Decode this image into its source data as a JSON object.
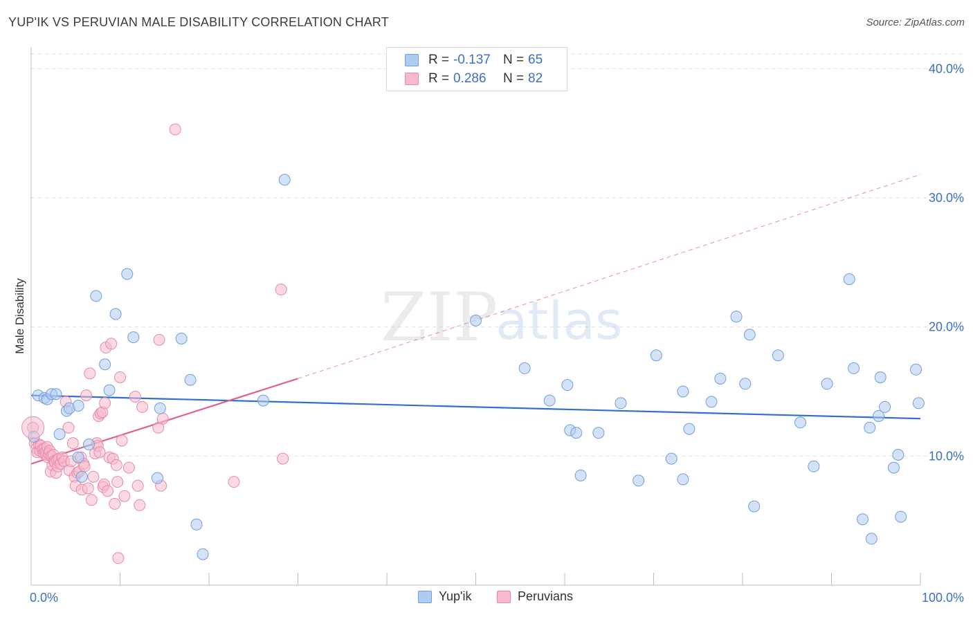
{
  "header": {
    "title": "YUP'IK VS PERUVIAN MALE DISABILITY CORRELATION CHART",
    "source": "Source: ZipAtlas.com"
  },
  "watermark": {
    "zip": "ZIP",
    "atlas": "atlas"
  },
  "legend": {
    "rows": [
      {
        "r_label": "R =",
        "r_value": "-0.137",
        "n_label": "N =",
        "n_value": "65"
      },
      {
        "r_label": "R =",
        "r_value": "0.286",
        "n_label": "N =",
        "n_value": "82"
      }
    ]
  },
  "bottom_legend": {
    "series1": "Yup'ik",
    "series2": "Peruvians"
  },
  "colors": {
    "blue_fill": "#aecbf0",
    "blue_stroke": "#6f9fdc",
    "blue_line": "#2f6fd0",
    "pink_fill": "#f7b9cc",
    "pink_stroke": "#e889a8",
    "pink_line": "#e0608a",
    "accent_text": "#3a6fc8",
    "grid": "#dedede"
  },
  "chart_data": {
    "type": "scatter",
    "title": "YUP'IK VS PERUVIAN MALE DISABILITY CORRELATION CHART",
    "xlabel": "",
    "ylabel": "Male Disability",
    "xlim": [
      0,
      100
    ],
    "ylim": [
      0,
      42
    ],
    "x_tick_labels": [
      "0.0%",
      "100.0%"
    ],
    "y_ticks": [
      10,
      20,
      30,
      40
    ],
    "y_tick_labels": [
      "10.0%",
      "20.0%",
      "30.0%",
      "40.0%"
    ],
    "series": [
      {
        "name": "Yup'ik",
        "r": -0.137,
        "n": 65,
        "trend": {
          "x0": 0,
          "y0": 14.7,
          "x1": 100,
          "y1": 12.9
        },
        "points": [
          [
            0.3,
            11.5
          ],
          [
            0.8,
            14.7
          ],
          [
            1.5,
            14.5
          ],
          [
            1.8,
            14.4
          ],
          [
            2.3,
            14.8
          ],
          [
            2.8,
            14.8
          ],
          [
            3.2,
            11.7
          ],
          [
            4.0,
            13.5
          ],
          [
            4.3,
            13.7
          ],
          [
            5.3,
            13.9
          ],
          [
            5.3,
            9.9
          ],
          [
            5.7,
            8.4
          ],
          [
            6.5,
            10.9
          ],
          [
            7.3,
            22.4
          ],
          [
            8.3,
            17.1
          ],
          [
            8.8,
            15.1
          ],
          [
            9.5,
            21.0
          ],
          [
            10.8,
            24.1
          ],
          [
            11.5,
            19.2
          ],
          [
            14.5,
            13.7
          ],
          [
            14.2,
            8.3
          ],
          [
            16.9,
            19.1
          ],
          [
            17.9,
            15.9
          ],
          [
            18.6,
            4.7
          ],
          [
            19.3,
            2.4
          ],
          [
            26.1,
            14.3
          ],
          [
            28.5,
            31.4
          ],
          [
            50.0,
            20.5
          ],
          [
            55.5,
            16.8
          ],
          [
            58.3,
            14.3
          ],
          [
            60.3,
            15.5
          ],
          [
            60.6,
            12.0
          ],
          [
            61.3,
            11.8
          ],
          [
            61.8,
            8.5
          ],
          [
            63.8,
            11.8
          ],
          [
            66.3,
            14.1
          ],
          [
            68.3,
            8.1
          ],
          [
            70.3,
            17.8
          ],
          [
            72.0,
            9.8
          ],
          [
            73.3,
            8.2
          ],
          [
            73.3,
            15.0
          ],
          [
            74.0,
            12.1
          ],
          [
            76.5,
            14.2
          ],
          [
            77.5,
            16.0
          ],
          [
            79.3,
            20.8
          ],
          [
            80.3,
            15.6
          ],
          [
            81.3,
            6.1
          ],
          [
            80.8,
            19.4
          ],
          [
            84.0,
            17.8
          ],
          [
            86.5,
            12.6
          ],
          [
            88.0,
            9.2
          ],
          [
            89.5,
            15.6
          ],
          [
            92.0,
            23.7
          ],
          [
            92.5,
            16.8
          ],
          [
            93.5,
            5.1
          ],
          [
            94.3,
            12.2
          ],
          [
            94.5,
            3.6
          ],
          [
            95.3,
            13.1
          ],
          [
            95.5,
            16.1
          ],
          [
            96.0,
            13.8
          ],
          [
            97.0,
            9.1
          ],
          [
            97.5,
            10.1
          ],
          [
            97.8,
            5.3
          ],
          [
            99.5,
            16.7
          ],
          [
            99.8,
            14.1
          ]
        ]
      },
      {
        "name": "Peruvians",
        "r": 0.286,
        "n": 82,
        "trend": {
          "x0": 0,
          "y0": 9.4,
          "x1": 30,
          "y1": 16.0
        },
        "trend_ext": {
          "x0": 30,
          "y0": 16.0,
          "x1": 100,
          "y1": 31.8
        },
        "points": [
          [
            0.2,
            12.2
          ],
          [
            0.4,
            11.0
          ],
          [
            0.6,
            10.6
          ],
          [
            0.7,
            10.3
          ],
          [
            0.9,
            10.9
          ],
          [
            1.0,
            10.4
          ],
          [
            1.1,
            10.8
          ],
          [
            1.3,
            10.5
          ],
          [
            1.4,
            10.2
          ],
          [
            1.5,
            10.6
          ],
          [
            1.6,
            10.3
          ],
          [
            1.7,
            10.1
          ],
          [
            1.8,
            10.7
          ],
          [
            1.9,
            9.9
          ],
          [
            2.0,
            10.2
          ],
          [
            2.1,
            10.4
          ],
          [
            2.2,
            8.8
          ],
          [
            2.3,
            10.0
          ],
          [
            2.4,
            9.3
          ],
          [
            2.5,
            10.1
          ],
          [
            2.6,
            9.6
          ],
          [
            2.7,
            9.5
          ],
          [
            2.8,
            8.7
          ],
          [
            2.9,
            9.7
          ],
          [
            3.0,
            9.2
          ],
          [
            3.1,
            9.8
          ],
          [
            3.3,
            9.4
          ],
          [
            3.5,
            9.9
          ],
          [
            3.7,
            9.6
          ],
          [
            3.9,
            14.2
          ],
          [
            4.2,
            12.2
          ],
          [
            4.3,
            8.9
          ],
          [
            4.5,
            9.6
          ],
          [
            4.7,
            11.0
          ],
          [
            4.9,
            8.4
          ],
          [
            5.0,
            7.7
          ],
          [
            5.2,
            8.7
          ],
          [
            5.4,
            8.8
          ],
          [
            5.6,
            9.9
          ],
          [
            5.7,
            7.4
          ],
          [
            5.9,
            9.4
          ],
          [
            6.0,
            9.2
          ],
          [
            6.2,
            14.7
          ],
          [
            6.4,
            7.5
          ],
          [
            6.6,
            16.4
          ],
          [
            6.8,
            6.6
          ],
          [
            7.0,
            8.4
          ],
          [
            7.2,
            10.2
          ],
          [
            7.4,
            11.0
          ],
          [
            7.5,
            10.8
          ],
          [
            7.6,
            13.1
          ],
          [
            7.7,
            10.3
          ],
          [
            7.8,
            13.3
          ],
          [
            8.0,
            13.4
          ],
          [
            8.1,
            7.6
          ],
          [
            8.2,
            7.8
          ],
          [
            8.3,
            14.1
          ],
          [
            8.4,
            18.4
          ],
          [
            8.6,
            7.3
          ],
          [
            8.8,
            9.9
          ],
          [
            9.0,
            18.7
          ],
          [
            9.2,
            9.8
          ],
          [
            9.4,
            6.3
          ],
          [
            9.6,
            9.3
          ],
          [
            9.7,
            8.0
          ],
          [
            9.8,
            2.1
          ],
          [
            10.0,
            16.1
          ],
          [
            10.2,
            11.2
          ],
          [
            10.5,
            6.9
          ],
          [
            11.0,
            9.1
          ],
          [
            11.7,
            14.6
          ],
          [
            12.0,
            7.7
          ],
          [
            12.2,
            6.2
          ],
          [
            12.5,
            13.8
          ],
          [
            14.3,
            12.2
          ],
          [
            14.4,
            19.0
          ],
          [
            14.6,
            7.7
          ],
          [
            14.8,
            12.9
          ],
          [
            16.2,
            35.3
          ],
          [
            22.8,
            8.0
          ],
          [
            28.1,
            22.9
          ],
          [
            28.3,
            9.8
          ]
        ]
      }
    ]
  }
}
